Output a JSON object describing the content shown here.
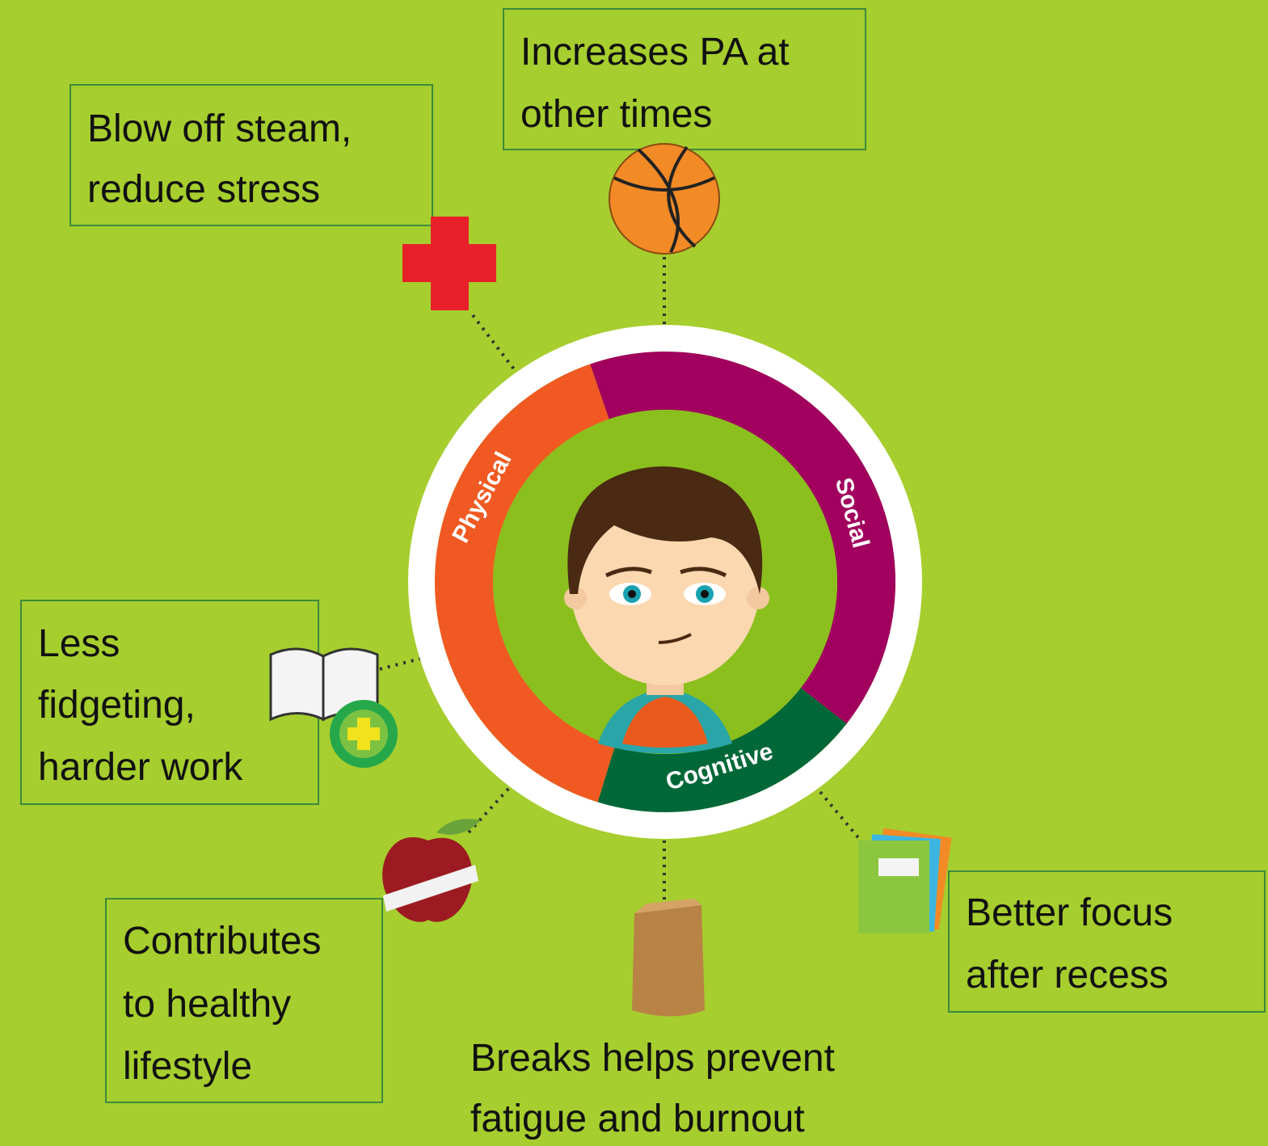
{
  "boxes": [
    {
      "lines": [
        "Blow off steam,",
        "reduce stress"
      ]
    },
    {
      "lines": [
        "Increases PA at",
        "other times"
      ]
    },
    {
      "lines": [
        "Less",
        "fidgeting,",
        "harder work"
      ]
    },
    {
      "lines": [
        "Contributes",
        "to healthy",
        "lifestyle"
      ]
    },
    {
      "lines": [
        "Better focus",
        "after recess"
      ]
    }
  ],
  "caption": {
    "lines": [
      "Breaks helps prevent",
      "fatigue and burnout"
    ]
  },
  "ring": {
    "segments": [
      "Physical",
      "Social",
      "Cognitive"
    ]
  }
}
